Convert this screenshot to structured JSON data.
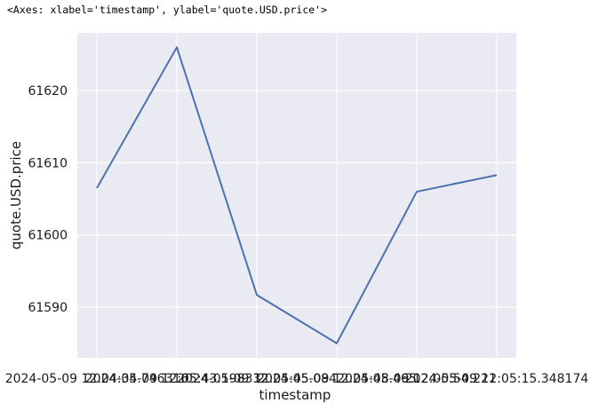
{
  "repr_text": "<Axes: xlabel='timestamp', ylabel='quote.USD.price'>",
  "chart_data": {
    "type": "line",
    "xlabel": "timestamp",
    "ylabel": "quote.USD.price",
    "x": [
      "2024-05-09 12:04:34.746316",
      "2024-05-09 12:05:43.198332",
      "2024-05-09 12:05:45.084",
      "2024-05-09 12:05:48.465",
      "2024-05-09 12:05:54.221",
      "2024-05-09 12:05:15.348174"
    ],
    "xtick_labels": [
      "2024-05-09 12:04:34.746316",
      "2024-05-09 12:05:43.198332",
      "2024-05-09 12:05:45.084",
      "2024-05-09 12:05:48.465",
      "2024-05-09 12:05:54.221",
      "2024-05-09 12:05:15.348174"
    ],
    "series": [
      {
        "values": [
          61606.5,
          61626.0,
          61591.7,
          61585.0,
          61606.0,
          61608.3
        ]
      }
    ],
    "yticks": [
      61590,
      61600,
      61610,
      61620
    ],
    "ylim": [
      61583.0,
      61628.0
    ],
    "grid": true,
    "line_color": "#4c72b0",
    "background_color": "#eaeaf2",
    "grid_color": "#ffffff"
  }
}
